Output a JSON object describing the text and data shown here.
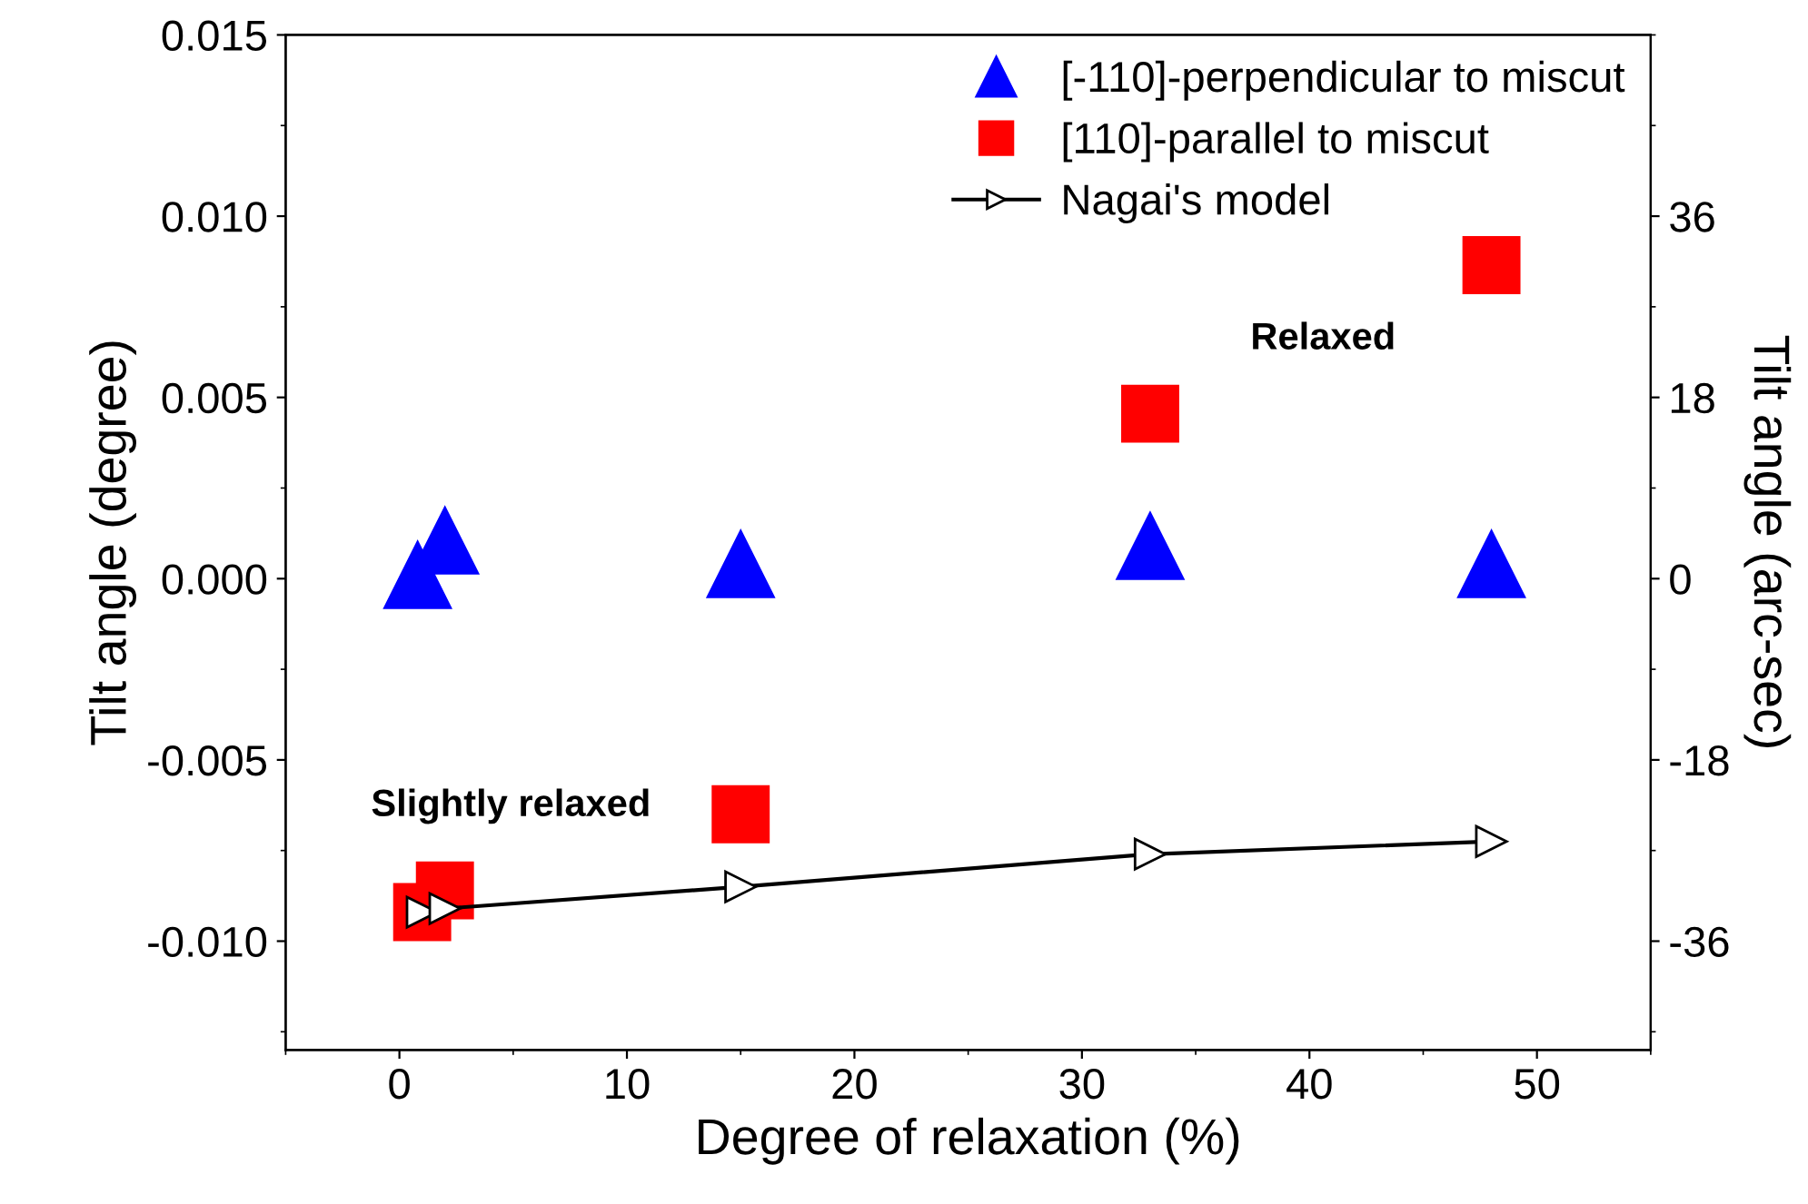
{
  "chart_data": {
    "type": "scatter",
    "xlabel": "Degree of relaxation (%)",
    "ylabel": "Tilt angle (degree)",
    "y2label": "Tilt angle (arc-sec)",
    "xlim": [
      -5,
      55
    ],
    "xticks": [
      0,
      10,
      20,
      30,
      40,
      50
    ],
    "ylim": [
      -0.013,
      0.015
    ],
    "yticks": [
      {
        "value": -0.01,
        "label": "-0.010"
      },
      {
        "value": -0.005,
        "label": "-0.005"
      },
      {
        "value": 0,
        "label": "0.000"
      },
      {
        "value": 0.005,
        "label": "0.005"
      },
      {
        "value": 0.01,
        "label": "0.010"
      },
      {
        "value": 0.015,
        "label": "0.015"
      }
    ],
    "y2lim": [
      -46.8,
      54
    ],
    "y2ticks": [
      -36,
      -18,
      0,
      18,
      36
    ],
    "legend": "top right",
    "grid": false,
    "annotations": [
      "Relaxed",
      "Slightly relaxed"
    ],
    "series": [
      {
        "name": "[-110]-perpendicular to miscut",
        "marker": "triangle",
        "color": "#0000ff",
        "x": [
          0.8,
          2,
          15,
          33,
          48
        ],
        "values": [
          0.0001,
          0.00105,
          0.0004,
          0.0009,
          0.0004
        ]
      },
      {
        "name": "[110]-parallel to miscut",
        "marker": "square",
        "color": "#ff0000",
        "x": [
          1,
          2,
          15,
          33,
          48
        ],
        "values": [
          -0.0092,
          -0.0086,
          -0.0065,
          0.00455,
          0.00865
        ]
      },
      {
        "name": "Nagai's model",
        "type": "line",
        "marker": "triangle-right",
        "color": "#000000",
        "x": [
          1,
          2,
          15,
          33,
          48
        ],
        "values": [
          -0.0092,
          -0.0091,
          -0.0085,
          -0.0076,
          -0.00725
        ]
      }
    ]
  }
}
